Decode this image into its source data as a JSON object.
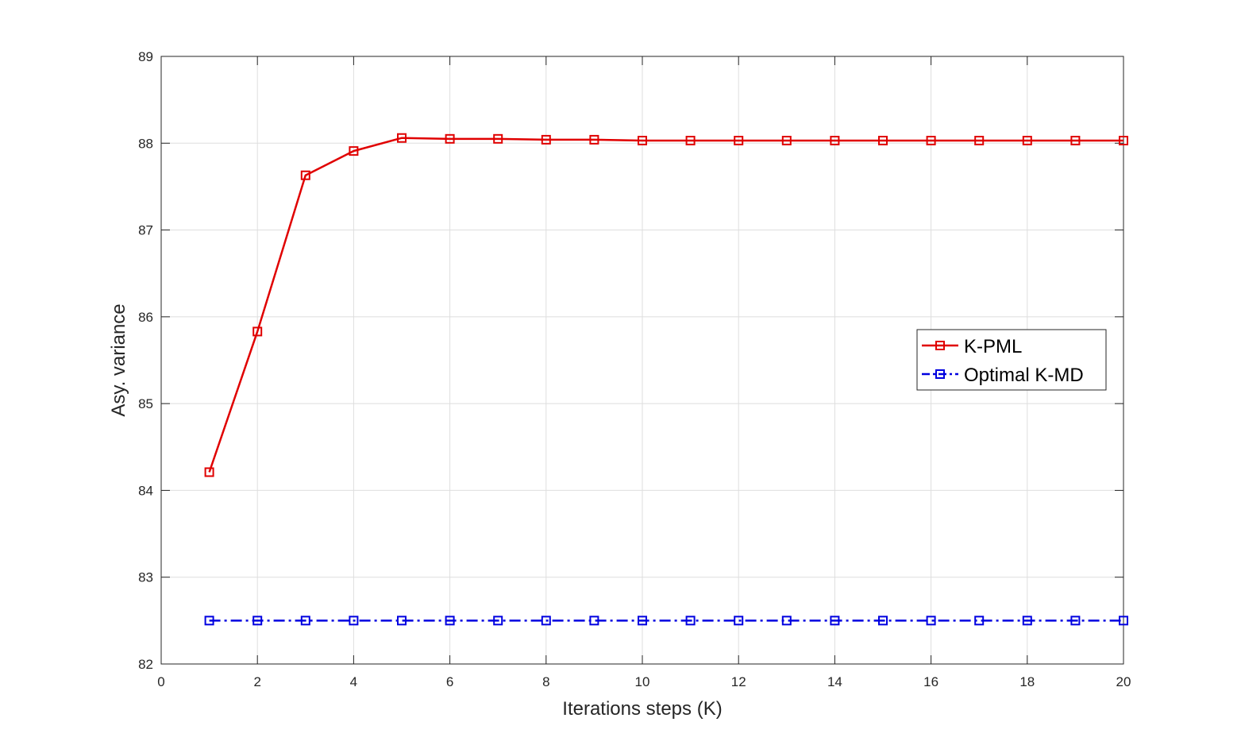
{
  "chart_data": {
    "type": "line",
    "xlabel": "Iterations steps (K)",
    "ylabel": "Asy. variance",
    "xlim": [
      0,
      20
    ],
    "ylim": [
      82,
      89
    ],
    "x_ticks": [
      0,
      2,
      4,
      6,
      8,
      10,
      12,
      14,
      16,
      18,
      20
    ],
    "y_ticks": [
      82,
      83,
      84,
      85,
      86,
      87,
      88,
      89
    ],
    "grid": true,
    "legend_position": "right-middle",
    "x": [
      1,
      2,
      3,
      4,
      5,
      6,
      7,
      8,
      9,
      10,
      11,
      12,
      13,
      14,
      15,
      16,
      17,
      18,
      19,
      20
    ],
    "series": [
      {
        "name": "K-PML",
        "color": "#e00000",
        "line_style": "solid",
        "marker": "square",
        "values": [
          84.21,
          85.83,
          87.63,
          87.91,
          88.06,
          88.05,
          88.05,
          88.04,
          88.04,
          88.03,
          88.03,
          88.03,
          88.03,
          88.03,
          88.03,
          88.03,
          88.03,
          88.03,
          88.03,
          88.03
        ]
      },
      {
        "name": "Optimal K-MD",
        "color": "#0000e0",
        "line_style": "dash-dot",
        "marker": "square",
        "values": [
          82.5,
          82.5,
          82.5,
          82.5,
          82.5,
          82.5,
          82.5,
          82.5,
          82.5,
          82.5,
          82.5,
          82.5,
          82.5,
          82.5,
          82.5,
          82.5,
          82.5,
          82.5,
          82.5,
          82.5
        ]
      }
    ]
  }
}
